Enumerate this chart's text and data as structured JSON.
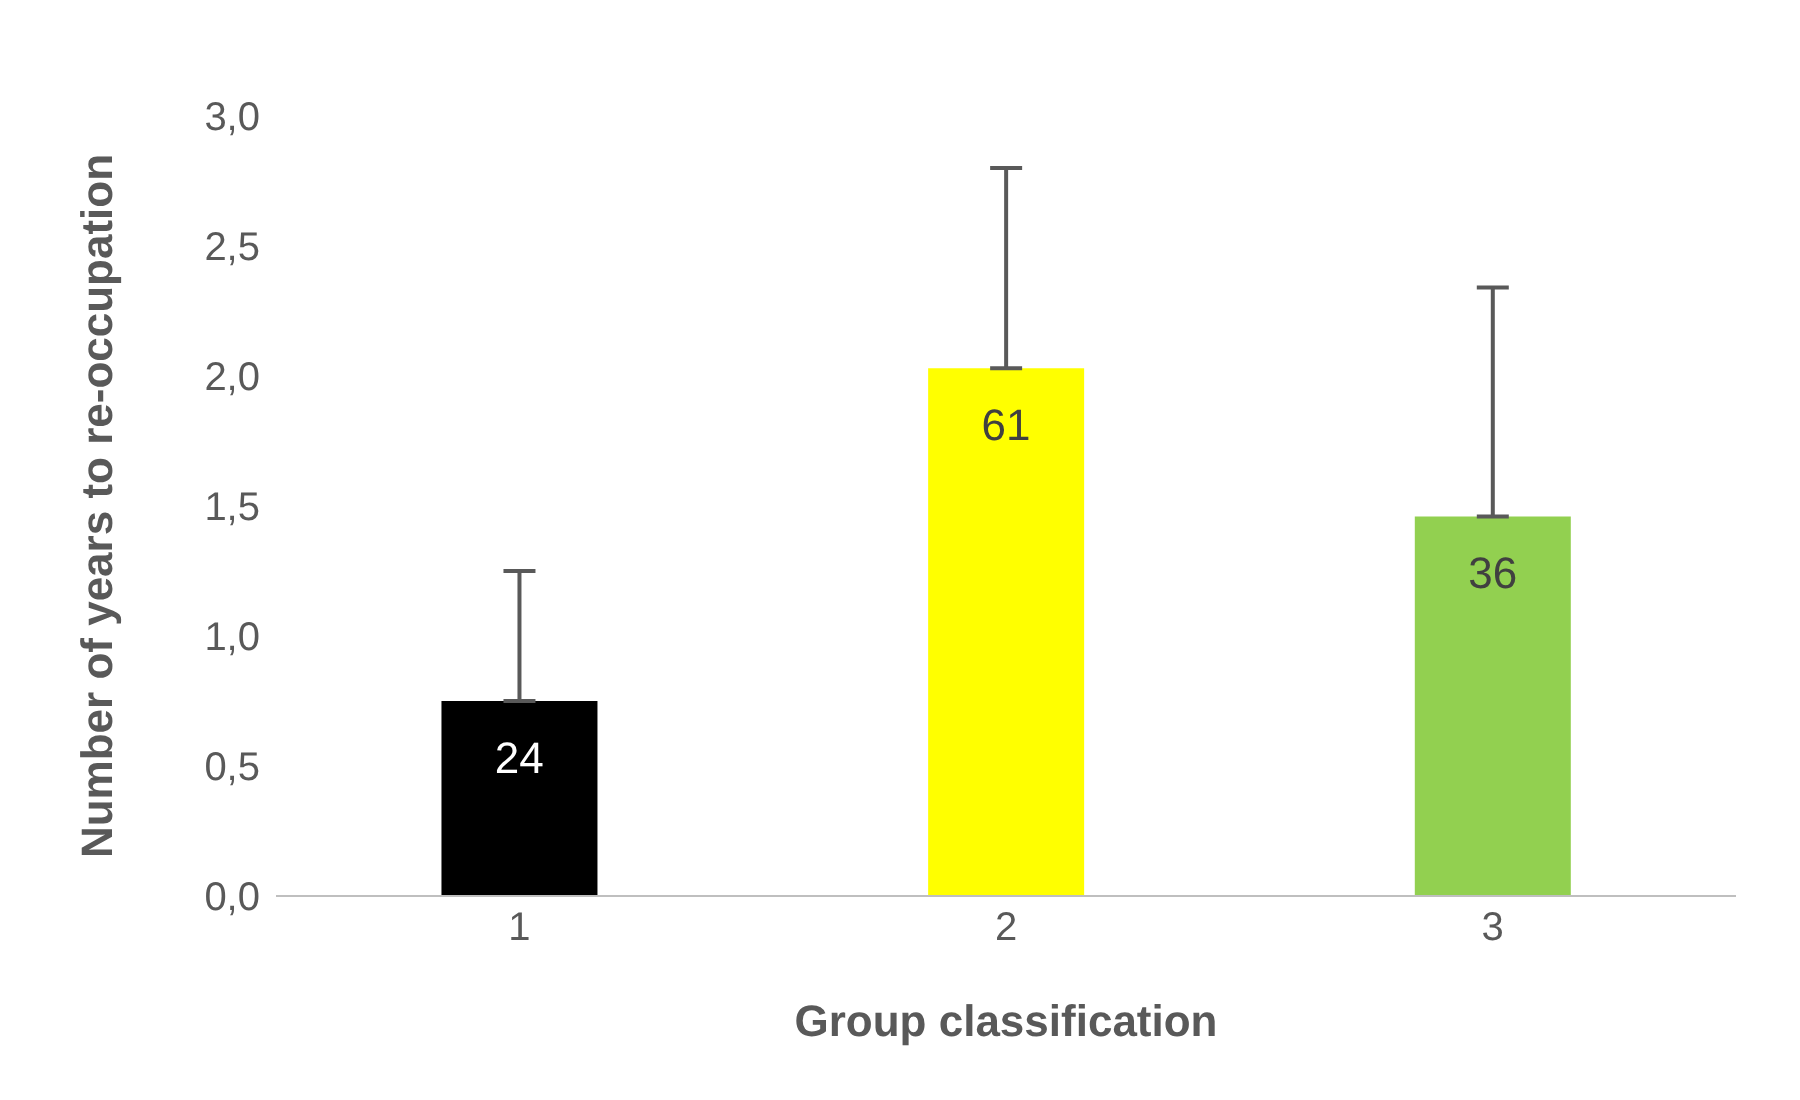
{
  "chart_data": {
    "type": "bar",
    "xlabel": "Group classification",
    "ylabel": "Number of years to re-occupation",
    "categories": [
      "1",
      "2",
      "3"
    ],
    "values": [
      0.75,
      2.03,
      1.46
    ],
    "colors": [
      "#000000",
      "#ffff00",
      "#92d050"
    ],
    "errors": [
      [
        0.75,
        1.25
      ],
      [
        2.03,
        2.8
      ],
      [
        1.46,
        2.34
      ]
    ],
    "annotations": [
      {
        "text": "24",
        "x": "1",
        "y": 0.75
      },
      {
        "text": "61",
        "x": "2",
        "y": 2.03
      },
      {
        "text": "36",
        "x": "3",
        "y": 1.46
      }
    ],
    "ylim": [
      0,
      3
    ],
    "yticks": [
      {
        "value": 0,
        "label": "0,0"
      },
      {
        "value": 0.5,
        "label": "0,5"
      },
      {
        "value": 1,
        "label": "1,0"
      },
      {
        "value": 1.5,
        "label": "1,5"
      },
      {
        "value": 2,
        "label": "2,0"
      },
      {
        "value": 2.5,
        "label": "2,5"
      },
      {
        "value": 3,
        "label": "3,0"
      }
    ],
    "grid": false,
    "legend": false
  }
}
